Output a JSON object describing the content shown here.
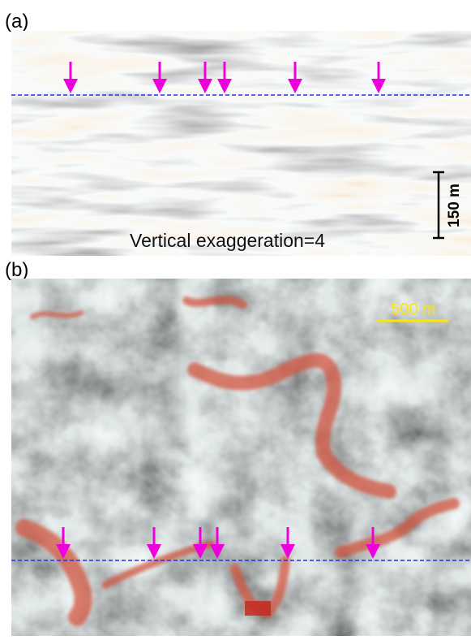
{
  "panel_a": {
    "label": "(a)",
    "annotation": "Vertical exaggeration=4",
    "scale_bar": "150 m"
  },
  "panel_b": {
    "label": "(b)",
    "scale_bar": "500 m"
  }
}
